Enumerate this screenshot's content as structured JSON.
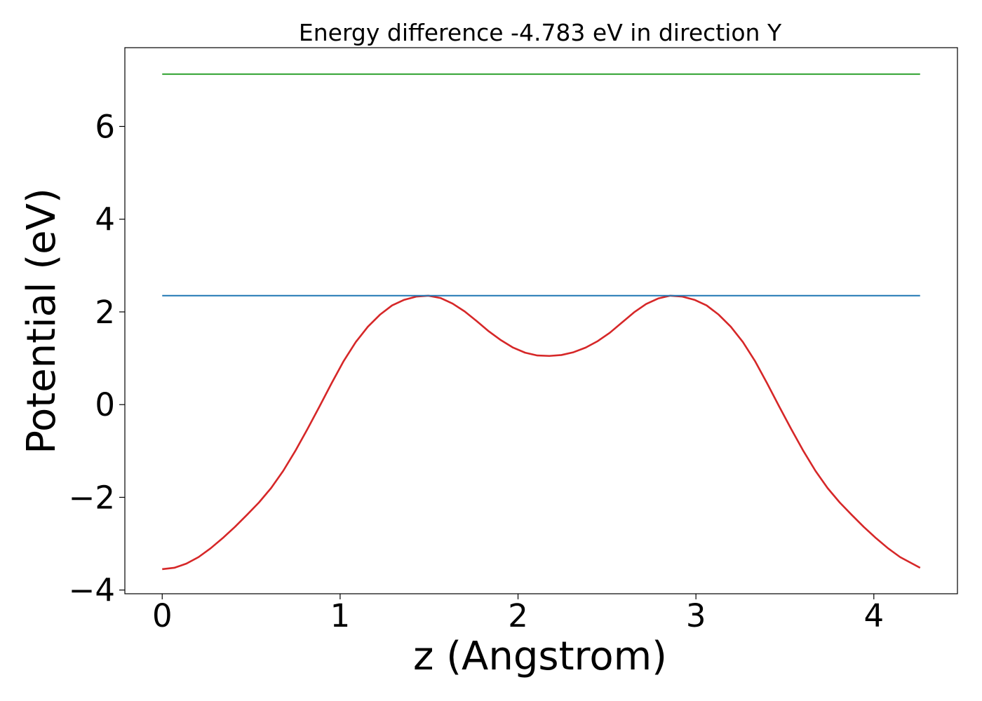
{
  "chart_data": {
    "type": "line",
    "title": "Energy difference -4.783 eV in direction Y",
    "xlabel": "z (Angstrom)",
    "ylabel": "Potential (eV)",
    "xlim": [
      -0.21,
      4.47
    ],
    "ylim": [
      -4.08,
      7.7
    ],
    "xticks": [
      0,
      1,
      2,
      3,
      4
    ],
    "xtick_labels": [
      "0",
      "1",
      "2",
      "3",
      "4"
    ],
    "yticks": [
      -4,
      -2,
      0,
      2,
      4,
      6
    ],
    "ytick_labels": [
      "−4",
      "−2",
      "0",
      "2",
      "4",
      "6"
    ],
    "grid": false,
    "legend": "none",
    "series": [
      {
        "color": "#d62728",
        "x": [
          0,
          0.068,
          0.136,
          0.204,
          0.272,
          0.34,
          0.408,
          0.476,
          0.544,
          0.612,
          0.68,
          0.748,
          0.816,
          0.884,
          0.952,
          1.02,
          1.088,
          1.156,
          1.224,
          1.292,
          1.36,
          1.428,
          1.496,
          1.564,
          1.632,
          1.7,
          1.768,
          1.836,
          1.904,
          1.972,
          2.04,
          2.108,
          2.176,
          2.244,
          2.312,
          2.38,
          2.448,
          2.516,
          2.584,
          2.652,
          2.72,
          2.788,
          2.856,
          2.924,
          2.992,
          3.06,
          3.128,
          3.196,
          3.264,
          3.332,
          3.4,
          3.468,
          3.536,
          3.604,
          3.672,
          3.74,
          3.808,
          3.876,
          3.944,
          4.012,
          4.08,
          4.148,
          4.216,
          4.26
        ],
        "y": [
          -3.55,
          -3.52,
          -3.43,
          -3.29,
          -3.1,
          -2.88,
          -2.64,
          -2.38,
          -2.11,
          -1.8,
          -1.43,
          -1.0,
          -0.53,
          -0.04,
          0.46,
          0.94,
          1.35,
          1.68,
          1.94,
          2.14,
          2.26,
          2.33,
          2.35,
          2.3,
          2.18,
          2.01,
          1.8,
          1.58,
          1.39,
          1.23,
          1.12,
          1.06,
          1.05,
          1.07,
          1.13,
          1.23,
          1.37,
          1.55,
          1.77,
          1.99,
          2.17,
          2.29,
          2.35,
          2.33,
          2.26,
          2.14,
          1.94,
          1.68,
          1.35,
          0.94,
          0.46,
          -0.04,
          -0.53,
          -1.0,
          -1.43,
          -1.8,
          -2.11,
          -2.38,
          -2.64,
          -2.88,
          -3.1,
          -3.29,
          -3.43,
          -3.52
        ]
      },
      {
        "color": "#1f77b4",
        "x": [
          0,
          4.26
        ],
        "y": [
          2.35,
          2.35
        ]
      },
      {
        "color": "#2ca02c",
        "x": [
          0,
          4.26
        ],
        "y": [
          7.13,
          7.13
        ]
      }
    ]
  }
}
